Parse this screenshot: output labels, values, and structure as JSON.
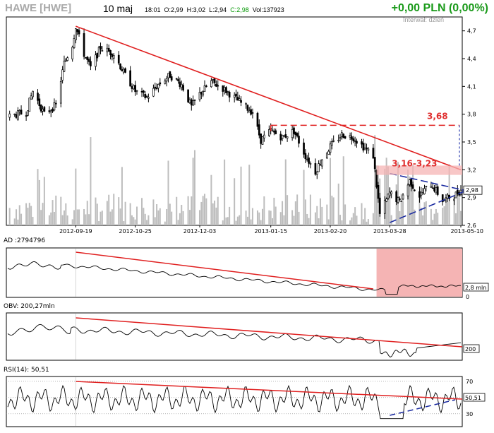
{
  "header": {
    "ticker": "HAWE [HWE]",
    "date": "10 maj",
    "time": "18:01",
    "open": "O:2,99",
    "high": "H:3,02",
    "low": "L:2,94",
    "close": "C:2,98",
    "volume": "Vol:137923",
    "change": "+0,00 PLN (0,00%)",
    "interval": "Interwał: dzień"
  },
  "colors": {
    "up": "#000000",
    "trendline": "#e02020",
    "highlight": "#f5b4b4",
    "wedge": "#1a2aa0",
    "volume": "#bdbdbd",
    "change": "#1a9a1a"
  },
  "chart_data": [
    {
      "type": "candlestick",
      "title": "HAWE [HWE]",
      "x_ticks": [
        "2012-09-19",
        "2012-10-25",
        "2012-12-03",
        "2013-01-15",
        "2013-02-20",
        "2013-03-28",
        "2013-05-10"
      ],
      "y_ticks": [
        "4,7",
        "4,4",
        "4,1",
        "3,8",
        "3,5",
        "3,2",
        "2,9",
        "2,6"
      ],
      "ylim": [
        2.6,
        4.85
      ],
      "price_trace": [
        [
          "2012-08-10",
          3.78
        ],
        [
          "2012-08-20",
          3.82
        ],
        [
          "2012-08-24",
          4.05
        ],
        [
          "2012-08-31",
          3.8
        ],
        [
          "2012-09-07",
          3.9
        ],
        [
          "2012-09-12",
          4.35
        ],
        [
          "2012-09-17",
          4.55
        ],
        [
          "2012-09-19",
          4.75
        ],
        [
          "2012-09-24",
          4.45
        ],
        [
          "2012-09-28",
          4.3
        ],
        [
          "2012-10-04",
          4.52
        ],
        [
          "2012-10-12",
          4.45
        ],
        [
          "2012-10-18",
          4.25
        ],
        [
          "2012-10-25",
          4.05
        ],
        [
          "2012-11-01",
          3.98
        ],
        [
          "2012-11-08",
          4.12
        ],
        [
          "2012-11-15",
          4.22
        ],
        [
          "2012-11-22",
          4.12
        ],
        [
          "2012-11-28",
          3.88
        ],
        [
          "2012-12-03",
          4.02
        ],
        [
          "2012-12-10",
          4.15
        ],
        [
          "2012-12-17",
          4.08
        ],
        [
          "2012-12-28",
          3.92
        ],
        [
          "2013-01-04",
          3.82
        ],
        [
          "2013-01-09",
          3.52
        ],
        [
          "2013-01-15",
          3.62
        ],
        [
          "2013-01-22",
          3.55
        ],
        [
          "2013-01-29",
          3.62
        ],
        [
          "2013-02-05",
          3.35
        ],
        [
          "2013-02-11",
          3.18
        ],
        [
          "2013-02-15",
          3.32
        ],
        [
          "2013-02-20",
          3.45
        ],
        [
          "2013-02-27",
          3.58
        ],
        [
          "2013-03-06",
          3.55
        ],
        [
          "2013-03-12",
          3.45
        ],
        [
          "2013-03-18",
          3.35
        ],
        [
          "2013-03-22",
          2.72
        ],
        [
          "2013-03-28",
          2.95
        ],
        [
          "2013-04-03",
          2.85
        ],
        [
          "2013-04-09",
          3.08
        ],
        [
          "2013-04-15",
          2.92
        ],
        [
          "2013-04-22",
          3.05
        ],
        [
          "2013-04-29",
          2.87
        ],
        [
          "2013-05-06",
          2.92
        ],
        [
          "2013-05-10",
          2.98
        ]
      ],
      "last_value": "2,98",
      "last_value_secondary": "2,9",
      "annotations": [
        "3,68",
        "3,16-3,23"
      ],
      "resistance_level": 3.68,
      "resistance_zone": [
        3.16,
        3.23
      ],
      "trendline_down": [
        [
          "2012-09-19",
          4.75
        ],
        [
          "2013-05-10",
          3.2
        ]
      ],
      "wedge_upper": [
        [
          "2013-03-28",
          3.16
        ],
        [
          "2013-05-10",
          2.98
        ]
      ],
      "wedge_lower": [
        [
          "2013-03-28",
          2.63
        ],
        [
          "2013-05-10",
          2.94
        ]
      ]
    },
    {
      "type": "line",
      "title": "AD :2794796",
      "last_value": "2,8 mln",
      "y_ticks": [
        "0"
      ],
      "highlight_range": [
        "2013-03-20",
        "2013-05-10"
      ]
    },
    {
      "type": "line",
      "title": "OBV: 200,27mln",
      "last_value": "200"
    },
    {
      "type": "line",
      "title": "RSI(14): 50,51",
      "last_value": "50,51",
      "y_ticks": [
        "70",
        "50",
        "30"
      ],
      "ylim": [
        15,
        75
      ]
    }
  ]
}
